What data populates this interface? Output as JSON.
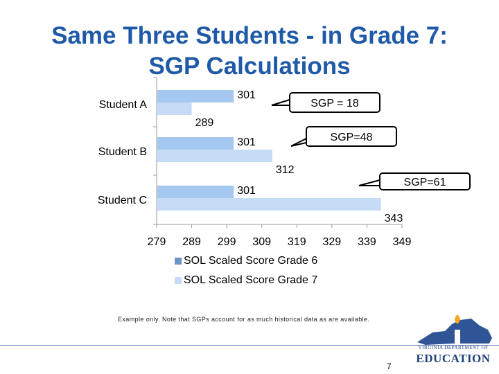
{
  "slide": {
    "title_line1": "Same Three Students - in Grade 7:",
    "title_line2": "SGP Calculations",
    "footnote": "Example only.  Note that SGPs account for as much historical data as are available.",
    "page_number": "7",
    "logo_top": "VIRGINIA DEPARTMENT OF",
    "logo_main": "EDUCATION",
    "logo_icon": "virginia-map-torch-icon"
  },
  "chart_data": {
    "type": "bar",
    "orientation": "horizontal",
    "categories": [
      "Student A",
      "Student B",
      "Student C"
    ],
    "series": [
      {
        "name": "SOL Scaled Score Grade 6",
        "values": [
          301,
          301,
          301
        ],
        "color": "#a5c8f0"
      },
      {
        "name": "SOL Scaled Score Grade 7",
        "values": [
          289,
          312,
          343
        ],
        "color": "#c6dcf6"
      }
    ],
    "xlim": [
      279,
      349
    ],
    "xticks": [
      279,
      289,
      299,
      309,
      319,
      329,
      339,
      349
    ],
    "grid": false,
    "legend": "bottom",
    "annotations": [
      {
        "text": "SGP = 18",
        "category": "Student A"
      },
      {
        "text": "SGP=48",
        "category": "Student B"
      },
      {
        "text": "SGP=61",
        "category": "Student C"
      }
    ]
  }
}
